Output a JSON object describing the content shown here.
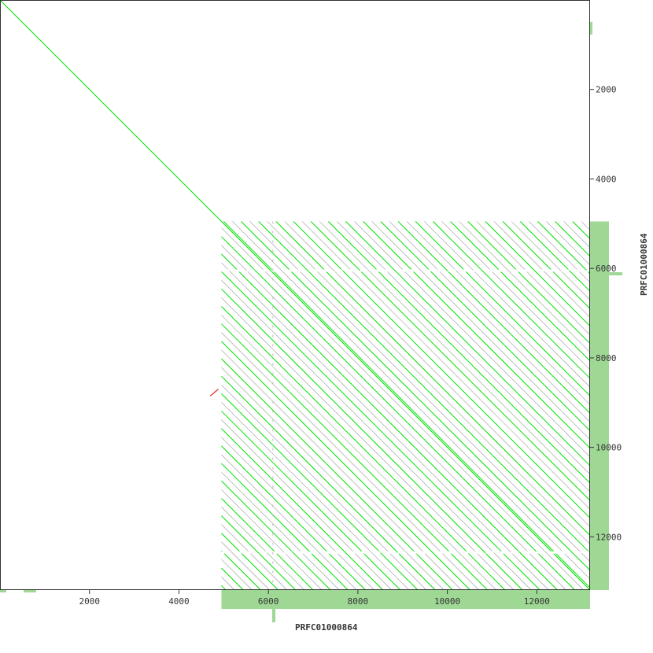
{
  "chart_data": {
    "type": "dotplot",
    "xlabel": "PRFC01000864",
    "ylabel": "PRFC01000864",
    "xlim": [
      0,
      13190
    ],
    "ylim": [
      0,
      13190
    ],
    "x_ticks": [
      2000,
      4000,
      6000,
      8000,
      10000,
      12000
    ],
    "y_ticks": [
      2000,
      4000,
      6000,
      8000,
      10000,
      12000
    ],
    "grid": false,
    "main_diagonal": {
      "from": [
        0,
        0
      ],
      "to": [
        13190,
        13190
      ],
      "color": "#00e000"
    },
    "repeat_region": {
      "start": 4950,
      "end": 13190,
      "line_offset_step": 195,
      "colors": [
        "#00e000",
        "#999999"
      ]
    },
    "gap_rows": [
      6050,
      12350
    ],
    "gap_column": 6100,
    "inverted_hit": {
      "from": [
        4700,
        8850
      ],
      "to": [
        4880,
        8700
      ],
      "color": "#e00000"
    },
    "coverage_color": "#9fd895",
    "coverage_range": [
      4950,
      13190
    ]
  }
}
